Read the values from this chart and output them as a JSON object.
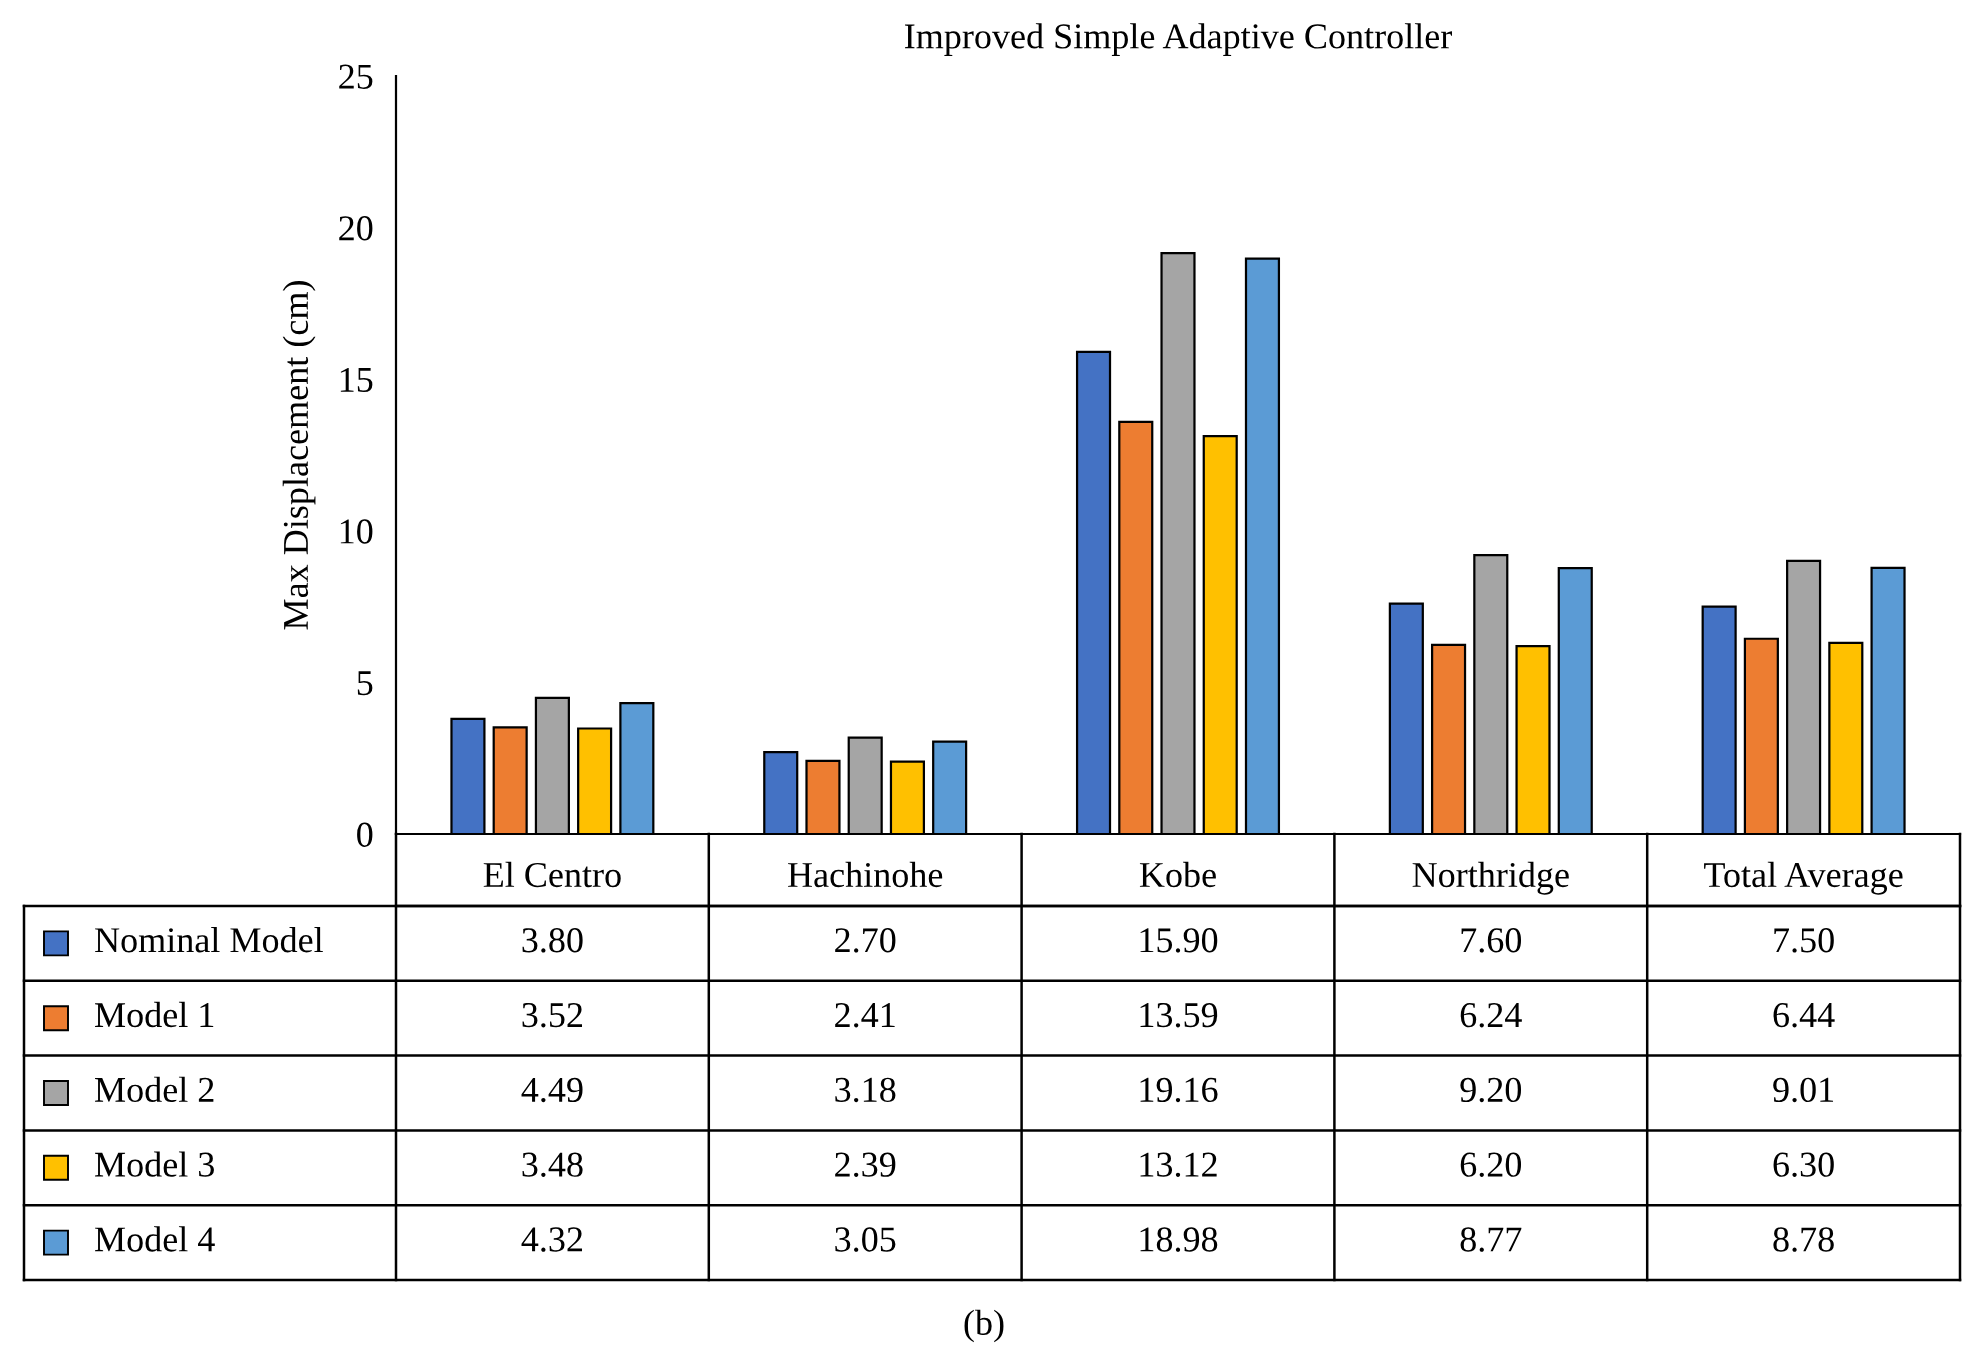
{
  "chart_data": {
    "type": "bar",
    "title": "Improved Simple Adaptive Controller",
    "ylabel": "Max Displacement (cm)",
    "categories": [
      "El Centro",
      "Hachinohe",
      "Kobe",
      "Northridge",
      "Total Average"
    ],
    "series": [
      {
        "name": "Nominal Model",
        "color": "#4472c4",
        "values": [
          3.8,
          2.7,
          15.9,
          7.6,
          7.5
        ],
        "value_labels": [
          "3.80",
          "2.70",
          "15.90",
          "7.60",
          "7.50"
        ]
      },
      {
        "name": "Model 1",
        "color": "#ed7d31",
        "values": [
          3.52,
          2.41,
          13.59,
          6.24,
          6.44
        ],
        "value_labels": [
          "3.52",
          "2.41",
          "13.59",
          "6.24",
          "6.44"
        ]
      },
      {
        "name": "Model 2",
        "color": "#a5a5a5",
        "values": [
          4.49,
          3.18,
          19.16,
          9.2,
          9.01
        ],
        "value_labels": [
          "4.49",
          "3.18",
          "19.16",
          "9.20",
          "9.01"
        ]
      },
      {
        "name": "Model 3",
        "color": "#ffc000",
        "values": [
          3.48,
          2.39,
          13.12,
          6.2,
          6.3
        ],
        "value_labels": [
          "3.48",
          "2.39",
          "13.12",
          "6.20",
          "6.30"
        ]
      },
      {
        "name": "Model 4",
        "color": "#5b9bd5",
        "values": [
          4.32,
          3.05,
          18.98,
          8.77,
          8.78
        ],
        "value_labels": [
          "4.32",
          "3.05",
          "18.98",
          "8.77",
          "8.78"
        ]
      }
    ],
    "ylim": [
      0,
      25
    ],
    "yticks": [
      0,
      5,
      10,
      15,
      20,
      25
    ],
    "legend": "bottom left",
    "annotations": [
      "(b)"
    ]
  }
}
